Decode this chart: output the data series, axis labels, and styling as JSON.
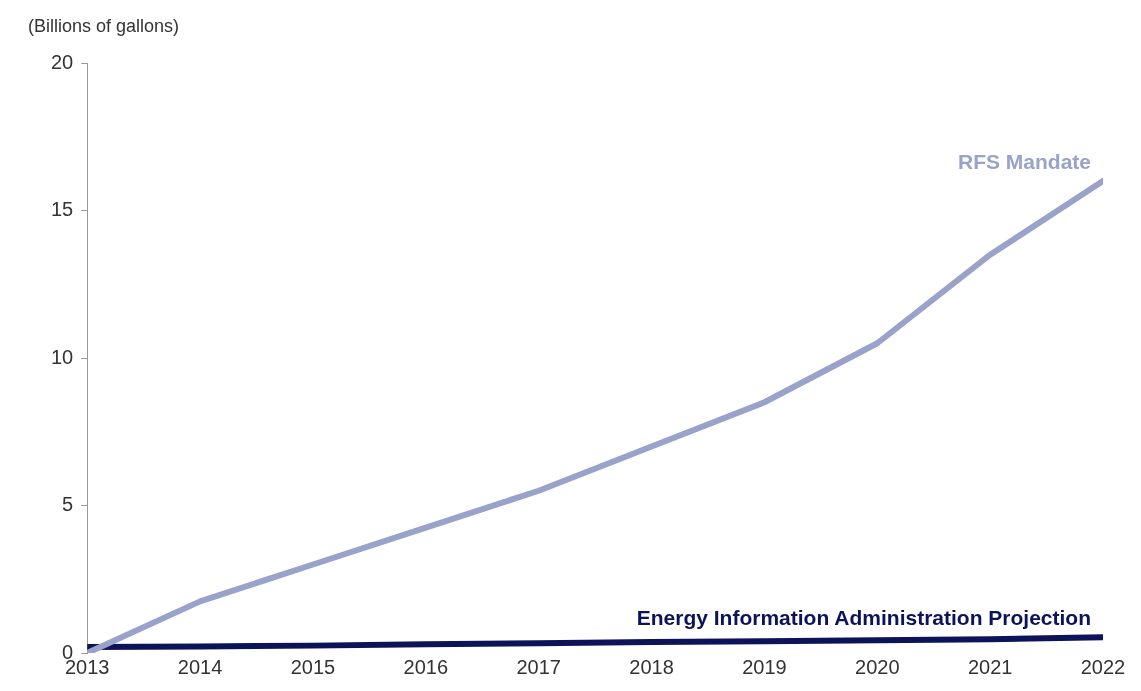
{
  "chart_data": {
    "type": "line",
    "ylabel": "(Billions of gallons)",
    "x": [
      2013,
      2014,
      2015,
      2016,
      2017,
      2018,
      2019,
      2020,
      2021,
      2022
    ],
    "xlim": [
      2013,
      2022
    ],
    "xticks": [
      2013,
      2014,
      2015,
      2016,
      2017,
      2018,
      2019,
      2020,
      2021,
      2022
    ],
    "ylim": [
      0,
      20
    ],
    "yticks": [
      0,
      5,
      10,
      15,
      20
    ],
    "grid": false,
    "legend": false,
    "marker": "none",
    "line_style": "solid",
    "series": [
      {
        "name": "RFS Mandate",
        "color": "#99a3c9",
        "values": [
          0,
          1.75,
          3.0,
          4.25,
          5.5,
          7.0,
          8.5,
          10.5,
          13.5,
          16.0
        ]
      },
      {
        "name": "Energy Information Administration Projection",
        "color": "#0c1359",
        "values": [
          0.2,
          0.22,
          0.25,
          0.3,
          0.33,
          0.37,
          0.4,
          0.43,
          0.47,
          0.53
        ]
      }
    ]
  }
}
